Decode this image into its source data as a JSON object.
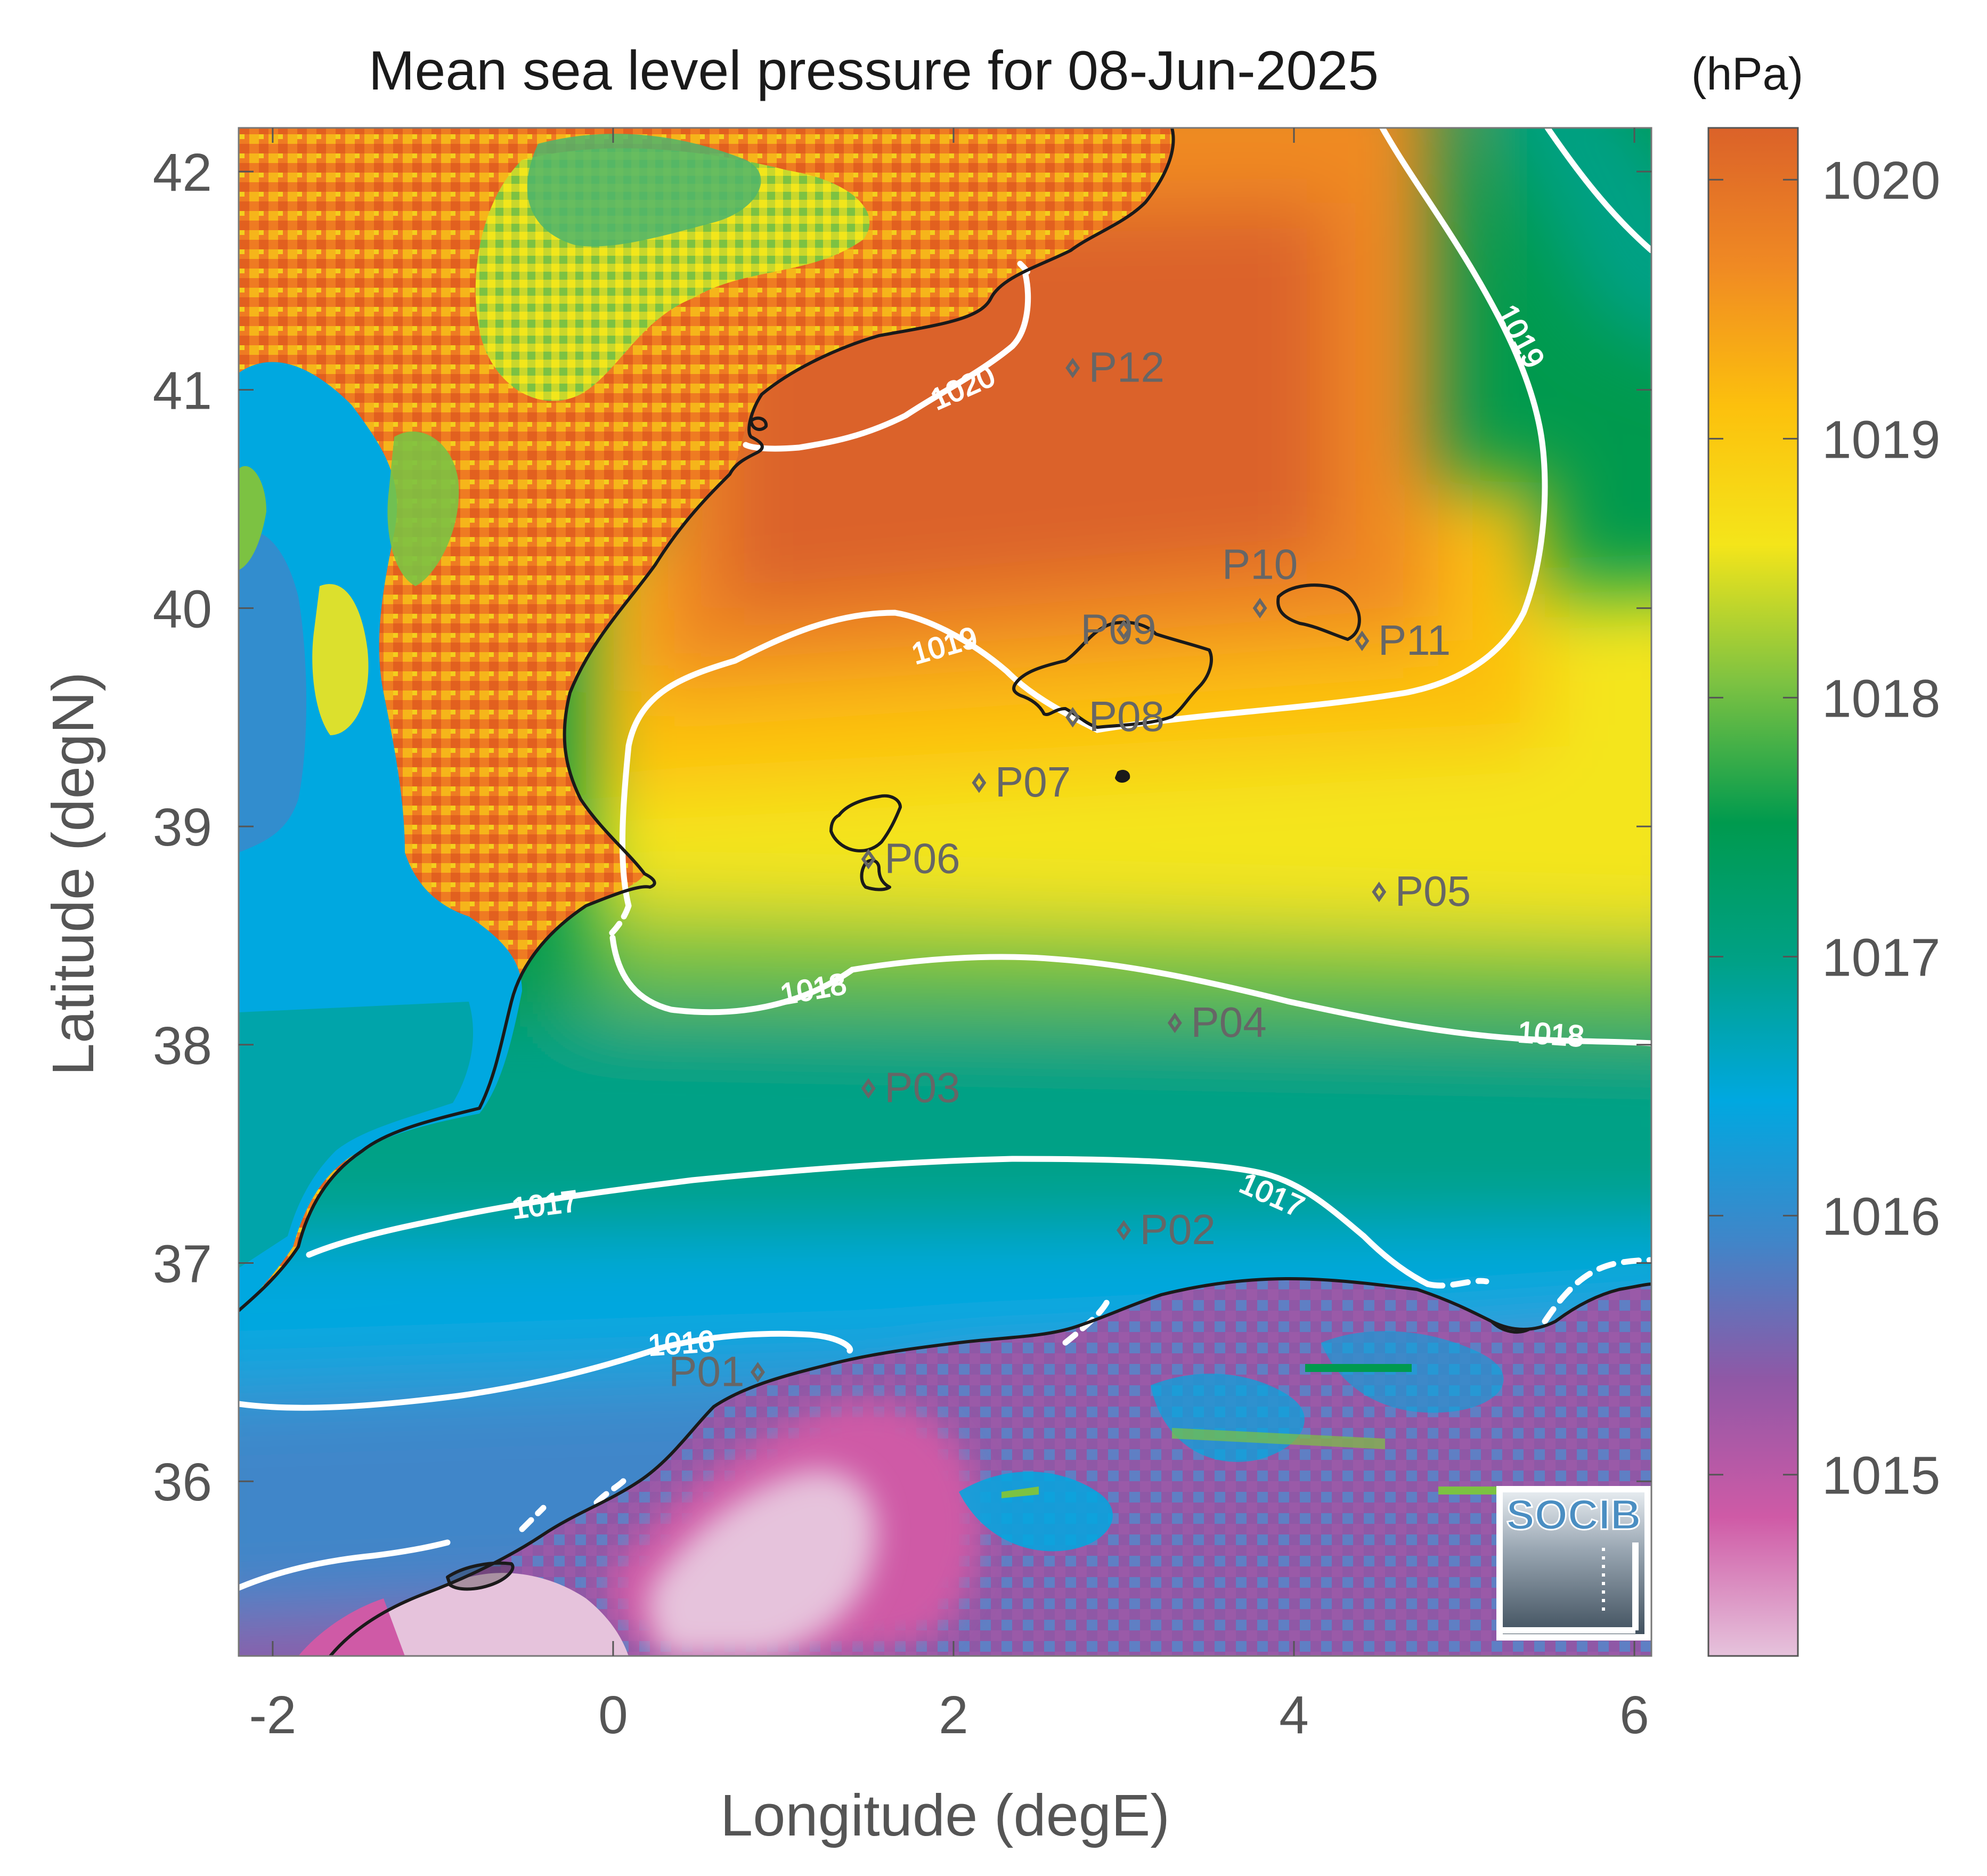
{
  "title": "Mean sea level pressure for 08-Jun-2025",
  "colorbar": {
    "unit_label": "(hPa)",
    "range": [
      1014.3,
      1020.2
    ],
    "ticks": [
      "1020",
      "1019",
      "1018",
      "1017",
      "1016",
      "1015"
    ],
    "stops": [
      "#e6c3dc",
      "#cf5aa6",
      "#8f58a6",
      "#3f86c9",
      "#00a8e0",
      "#00a186",
      "#009a4e",
      "#7cc242",
      "#f4e51a",
      "#fcc00d",
      "#f08a23",
      "#db6229"
    ]
  },
  "axes": {
    "xlabel": "Longitude (degE)",
    "ylabel": "Latitude (degN)",
    "xlim": [
      -2.2,
      6.1
    ],
    "ylim": [
      35.2,
      42.2
    ],
    "xticks": [
      "-2",
      "0",
      "2",
      "4",
      "6"
    ],
    "yticks": [
      "42",
      "41",
      "40",
      "39",
      "38",
      "37",
      "36"
    ]
  },
  "contours": {
    "labels": [
      "1020",
      "1019",
      "1019",
      "1018",
      "1018",
      "1017",
      "1017",
      "1016"
    ]
  },
  "stations": [
    {
      "id": "P01",
      "lon": 0.85,
      "lat": 36.5
    },
    {
      "id": "P02",
      "lon": 3.0,
      "lat": 37.15
    },
    {
      "id": "P03",
      "lon": 1.5,
      "lat": 37.8
    },
    {
      "id": "P04",
      "lon": 3.3,
      "lat": 38.1
    },
    {
      "id": "P05",
      "lon": 4.5,
      "lat": 38.7
    },
    {
      "id": "P06",
      "lon": 1.5,
      "lat": 38.85
    },
    {
      "id": "P07",
      "lon": 2.15,
      "lat": 39.2
    },
    {
      "id": "P08",
      "lon": 2.7,
      "lat": 39.5
    },
    {
      "id": "P09",
      "lon": 3.0,
      "lat": 39.9
    },
    {
      "id": "P10",
      "lon": 3.8,
      "lat": 40.0
    },
    {
      "id": "P11",
      "lon": 4.4,
      "lat": 39.85
    },
    {
      "id": "P12",
      "lon": 2.7,
      "lat": 41.1
    }
  ],
  "logo": {
    "text": "SOCIB"
  }
}
